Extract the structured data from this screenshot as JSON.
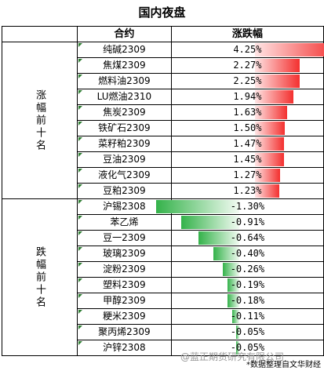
{
  "title": "国内夜盘",
  "headers": {
    "contract": "合约",
    "change": "涨跌幅"
  },
  "groups": {
    "up": "涨幅前十名",
    "down": "跌幅前十名"
  },
  "colors": {
    "up": "#f3302f",
    "down": "#34b24a"
  },
  "rows_up": [
    {
      "name": "纯碱2309",
      "change": "4.25%",
      "value": 4.25
    },
    {
      "name": "焦煤2309",
      "change": "2.27%",
      "value": 2.27
    },
    {
      "name": "燃料油2309",
      "change": "2.25%",
      "value": 2.25
    },
    {
      "name": "LU燃油2310",
      "change": "1.94%",
      "value": 1.94
    },
    {
      "name": "焦炭2309",
      "change": "1.63%",
      "value": 1.63
    },
    {
      "name": "铁矿石2309",
      "change": "1.50%",
      "value": 1.5
    },
    {
      "name": "菜籽粕2309",
      "change": "1.47%",
      "value": 1.47
    },
    {
      "name": "豆油2309",
      "change": "1.45%",
      "value": 1.45
    },
    {
      "name": "液化气2309",
      "change": "1.27%",
      "value": 1.27
    },
    {
      "name": "豆粕2309",
      "change": "1.23%",
      "value": 1.23
    }
  ],
  "rows_down": [
    {
      "name": "沪锡2308",
      "change": "-1.30%",
      "value": -1.3
    },
    {
      "name": "苯乙烯",
      "change": "-0.91%",
      "value": -0.91
    },
    {
      "name": "豆一2309",
      "change": "-0.64%",
      "value": -0.64
    },
    {
      "name": "玻璃2309",
      "change": "-0.40%",
      "value": -0.4
    },
    {
      "name": "淀粉2309",
      "change": "-0.26%",
      "value": -0.26
    },
    {
      "name": "塑料2309",
      "change": "-0.19%",
      "value": -0.19
    },
    {
      "name": "甲醇2309",
      "change": "-0.18%",
      "value": -0.18
    },
    {
      "name": "粳米2309",
      "change": "-0.11%",
      "value": -0.11
    },
    {
      "name": "聚丙烯2309",
      "change": "-0.05%",
      "value": -0.05
    },
    {
      "name": "沪锌2308",
      "change": "-0.05%",
      "value": -0.05
    }
  ],
  "watermark": "@蓝正期货研究有限公司",
  "footer_note": "*数据整理自文华财经"
}
